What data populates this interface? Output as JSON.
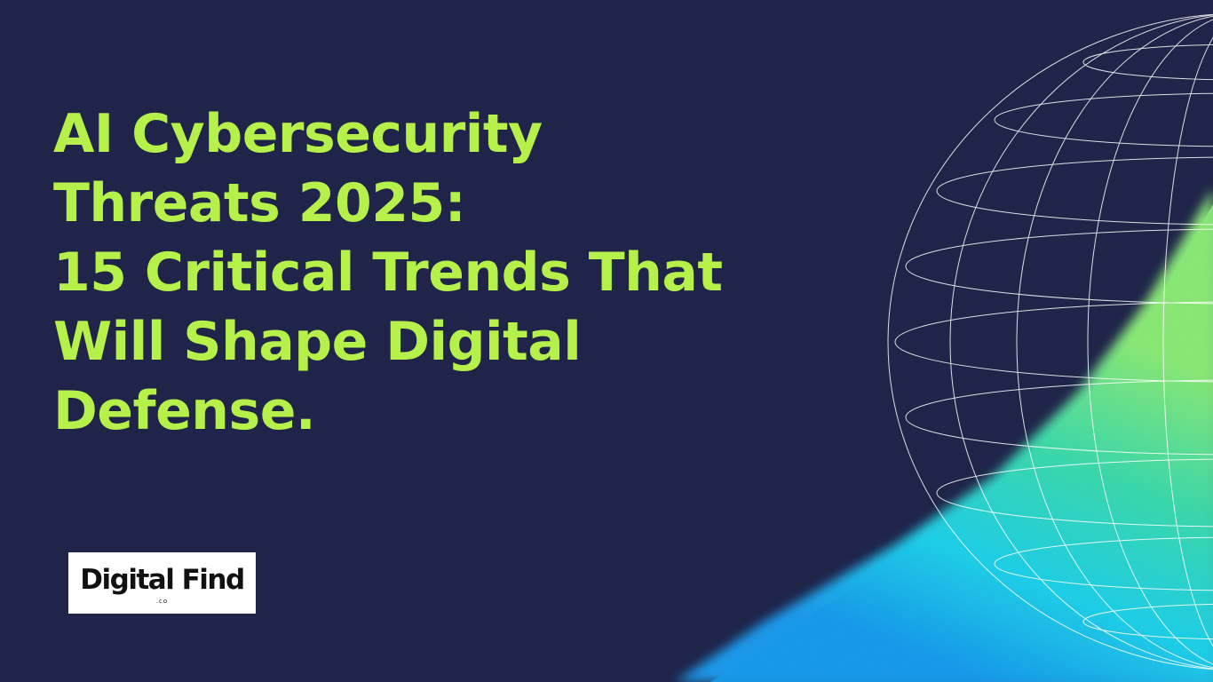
{
  "headline": {
    "line1": "AI Cybersecurity",
    "line2": "Threats 2025:",
    "line3": "15 Critical Trends That",
    "line4": "Will Shape Digital",
    "line5": "Defense."
  },
  "logo": {
    "name": "Digital Find",
    "suffix": ".co"
  },
  "colors": {
    "background": "#1f2448",
    "headline": "#b6f04a",
    "gradient_green": "#7ef07a",
    "gradient_cyan": "#1fd6f0",
    "gradient_blue": "#18a8f5",
    "globe_lines": "#ffffff"
  },
  "graphics": {
    "globe": "wireframe-globe",
    "glow": "teal-green-gradient-grain"
  }
}
